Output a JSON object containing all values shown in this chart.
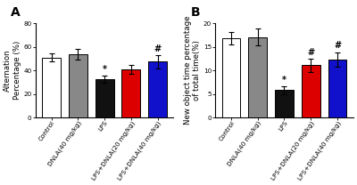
{
  "panel_A": {
    "title": "A",
    "ylabel": "Alternation\nPercentage (%)",
    "ylim": [
      0,
      80
    ],
    "yticks": [
      0,
      20,
      40,
      60,
      80
    ],
    "categories": [
      "Control",
      "DNLA(40 mg/kg)",
      "LPS",
      "LPS+DNLA(20 mg/kg)",
      "LPS+DNLA(40 mg/kg)"
    ],
    "values": [
      51.0,
      53.5,
      32.5,
      41.0,
      47.5
    ],
    "errors": [
      3.5,
      4.5,
      3.0,
      3.5,
      5.5
    ],
    "colors": [
      "#ffffff",
      "#888888",
      "#111111",
      "#dd0000",
      "#1111cc"
    ],
    "sig_labels": [
      "",
      "",
      "*",
      "",
      "#"
    ]
  },
  "panel_B": {
    "title": "B",
    "ylabel": "New object time percentage\nof total time(%)",
    "ylim": [
      0,
      20
    ],
    "yticks": [
      0,
      5,
      10,
      15,
      20
    ],
    "categories": [
      "Control",
      "DNLA(40 mg/kg)",
      "LPS",
      "LPS+DNLA(20 mg/kg)",
      "LPS+DNLA(40 mg/kg)"
    ],
    "values": [
      16.8,
      17.1,
      5.8,
      11.1,
      12.3
    ],
    "errors": [
      1.3,
      1.8,
      0.9,
      1.4,
      1.6
    ],
    "colors": [
      "#ffffff",
      "#888888",
      "#111111",
      "#dd0000",
      "#1111cc"
    ],
    "sig_labels": [
      "",
      "",
      "*",
      "#",
      "#"
    ]
  },
  "bar_width": 0.7,
  "bar_edge_color": "#000000",
  "bar_edge_width": 0.7,
  "tick_label_fontsize": 5.2,
  "ylabel_fontsize": 6.2,
  "panel_label_fontsize": 10,
  "sig_fontsize": 7,
  "capsize": 2.0,
  "elinewidth": 0.8
}
